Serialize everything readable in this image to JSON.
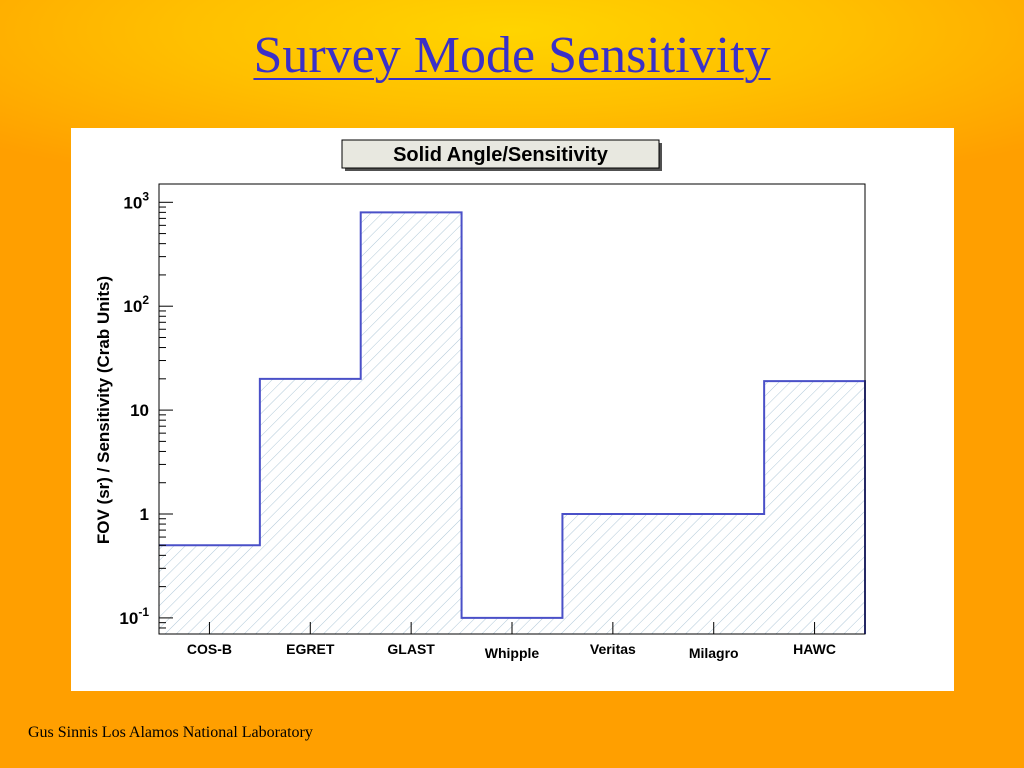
{
  "slide": {
    "title": "Survey Mode Sensitivity",
    "footer": "Gus Sinnis Los Alamos National Laboratory"
  },
  "colors": {
    "background": "#ff9f00",
    "title": "#3a30c8",
    "bar_outline": "#4a50c8",
    "hatch": "#b0c8d8"
  },
  "chart_data": {
    "type": "bar",
    "title": "Solid Angle/Sensitivity",
    "ylabel": "FOV (sr) / Sensitivity (Crab Units)",
    "xlabel": "",
    "yscale": "log",
    "ylim": [
      0.07,
      1500
    ],
    "grid": false,
    "categories": [
      "COS-B",
      "EGRET",
      "GLAST",
      "Whipple",
      "Veritas",
      "Milagro",
      "HAWC"
    ],
    "values": [
      0.5,
      20,
      800,
      0.1,
      1,
      1,
      19
    ],
    "yticks": [
      {
        "value": 0.1,
        "base": "10",
        "exp": "-1"
      },
      {
        "value": 1,
        "base": "1",
        "exp": ""
      },
      {
        "value": 10,
        "base": "10",
        "exp": ""
      },
      {
        "value": 100,
        "base": "10",
        "exp": "2"
      },
      {
        "value": 1000,
        "base": "10",
        "exp": "3"
      }
    ]
  }
}
